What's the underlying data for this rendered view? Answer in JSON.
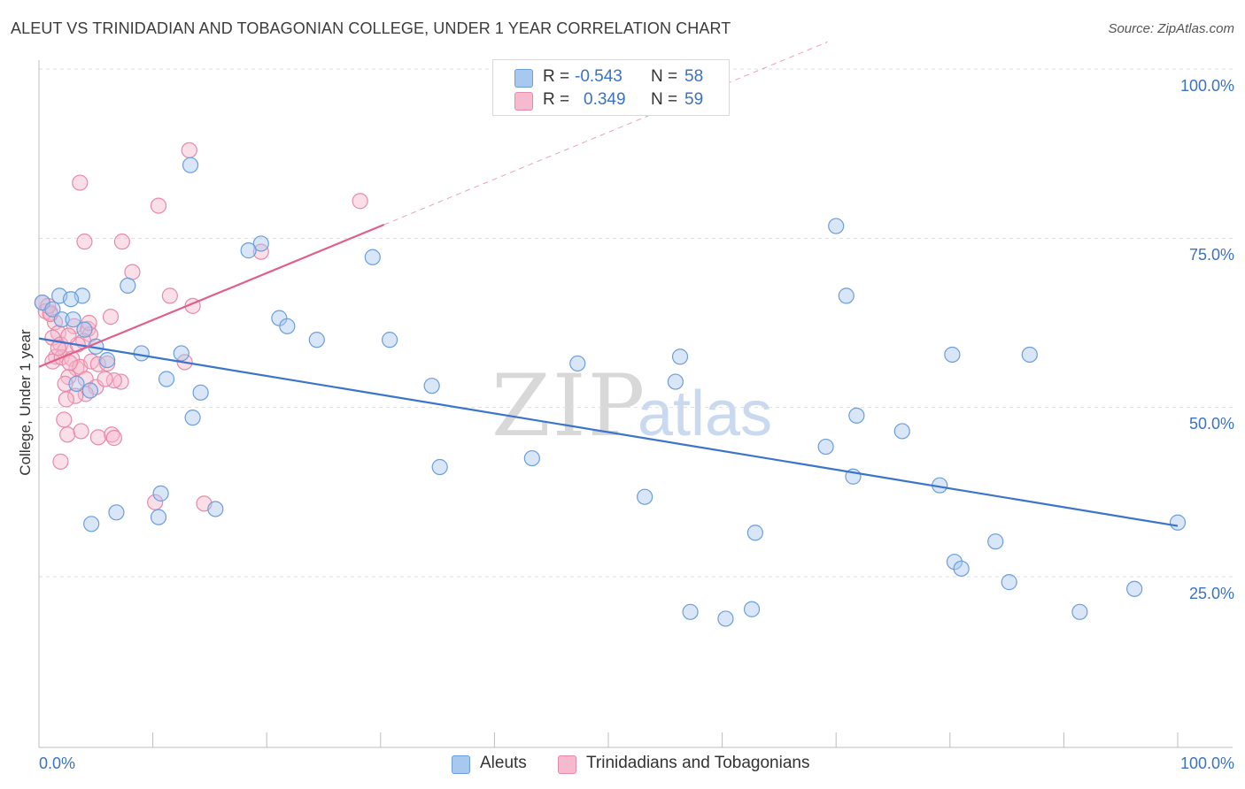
{
  "title": "ALEUT VS TRINIDADIAN AND TOBAGONIAN COLLEGE, UNDER 1 YEAR CORRELATION CHART",
  "source": "Source: ZipAtlas.com",
  "watermark": {
    "part1": "ZIP",
    "part2": "atlas"
  },
  "legend": {
    "r_label": "R =",
    "n_label": "N =",
    "series": [
      {
        "name": "Aleuts",
        "r": "-0.543",
        "n": "58",
        "color": "#a9c8ef",
        "stroke": "#6a9fdc"
      },
      {
        "name": "Trinidadians and Tobagonians",
        "r": "0.349",
        "n": "59",
        "color": "#f7b9cd",
        "stroke": "#e88aa8"
      }
    ]
  },
  "axes": {
    "ylabel": "College, Under 1 year",
    "x_min_label": "0.0%",
    "x_max_label": "100.0%",
    "y_ticks": [
      "100.0%",
      "75.0%",
      "50.0%",
      "25.0%"
    ]
  },
  "chart_data": {
    "type": "scatter",
    "title": "ALEUT VS TRINIDADIAN AND TOBAGONIAN COLLEGE, UNDER 1 YEAR CORRELATION CHART",
    "xlabel": "",
    "ylabel": "College, Under 1 year",
    "xlim": [
      0,
      100
    ],
    "ylim": [
      2,
      104
    ],
    "y_ticks": [
      25,
      50,
      75,
      100
    ],
    "grid": true,
    "legend_position": "top-center",
    "series": [
      {
        "name": "Aleuts",
        "color": "#6a9fdc",
        "trend": {
          "x": [
            0,
            100
          ],
          "y": [
            60.2,
            32.5
          ],
          "color": "#3a74cc"
        },
        "points": [
          [
            0.3,
            65.5
          ],
          [
            1.2,
            64.5
          ],
          [
            2.0,
            63.0
          ],
          [
            3.0,
            63.0
          ],
          [
            4.0,
            61.5
          ],
          [
            5.0,
            59.0
          ],
          [
            6.0,
            57.0
          ],
          [
            1.8,
            66.5
          ],
          [
            3.8,
            66.5
          ],
          [
            2.8,
            66.0
          ],
          [
            7.8,
            68.0
          ],
          [
            4.5,
            52.5
          ],
          [
            3.3,
            53.5
          ],
          [
            12.5,
            58.0
          ],
          [
            9.0,
            58.0
          ],
          [
            11.2,
            54.2
          ],
          [
            14.2,
            52.2
          ],
          [
            13.5,
            48.5
          ],
          [
            10.7,
            37.3
          ],
          [
            10.5,
            33.8
          ],
          [
            6.8,
            34.5
          ],
          [
            4.6,
            32.8
          ],
          [
            15.5,
            35.0
          ],
          [
            13.3,
            85.8
          ],
          [
            19.5,
            74.2
          ],
          [
            18.4,
            73.2
          ],
          [
            21.1,
            63.2
          ],
          [
            21.8,
            62.0
          ],
          [
            24.4,
            60.0
          ],
          [
            29.3,
            72.2
          ],
          [
            30.8,
            60.0
          ],
          [
            34.5,
            53.2
          ],
          [
            35.2,
            41.2
          ],
          [
            43.3,
            42.5
          ],
          [
            47.3,
            56.5
          ],
          [
            53.2,
            36.8
          ],
          [
            55.9,
            53.8
          ],
          [
            56.3,
            57.5
          ],
          [
            57.2,
            19.8
          ],
          [
            60.3,
            18.8
          ],
          [
            62.6,
            20.2
          ],
          [
            62.9,
            31.5
          ],
          [
            69.1,
            44.2
          ],
          [
            70.0,
            76.8
          ],
          [
            70.9,
            66.5
          ],
          [
            71.5,
            39.8
          ],
          [
            71.8,
            48.8
          ],
          [
            75.8,
            46.5
          ],
          [
            79.1,
            38.5
          ],
          [
            80.2,
            57.8
          ],
          [
            80.4,
            27.2
          ],
          [
            81.0,
            26.2
          ],
          [
            84.0,
            30.2
          ],
          [
            85.2,
            24.2
          ],
          [
            87.0,
            57.8
          ],
          [
            91.4,
            19.8
          ],
          [
            96.2,
            23.2
          ],
          [
            100.0,
            33.0
          ]
        ]
      },
      {
        "name": "Trinidadians and Tobagonians",
        "color": "#e88aa8",
        "trend": {
          "x": [
            0,
            30.3
          ],
          "y": [
            56.0,
            77.0
          ],
          "dash_to_x": 100,
          "color": "#e0608a"
        },
        "points": [
          [
            0.3,
            65.5
          ],
          [
            0.6,
            64.2
          ],
          [
            1.0,
            64.0
          ],
          [
            1.4,
            62.6
          ],
          [
            1.7,
            61.0
          ],
          [
            1.2,
            60.3
          ],
          [
            1.9,
            59.3
          ],
          [
            2.3,
            58.5
          ],
          [
            1.5,
            57.5
          ],
          [
            1.2,
            56.8
          ],
          [
            2.0,
            57.4
          ],
          [
            2.9,
            57.2
          ],
          [
            3.3,
            55.8
          ],
          [
            3.6,
            56.0
          ],
          [
            2.6,
            54.5
          ],
          [
            2.3,
            53.5
          ],
          [
            4.1,
            54.2
          ],
          [
            4.6,
            56.8
          ],
          [
            5.2,
            56.4
          ],
          [
            5.0,
            53.0
          ],
          [
            4.1,
            52.0
          ],
          [
            3.2,
            51.7
          ],
          [
            2.4,
            51.2
          ],
          [
            2.2,
            48.2
          ],
          [
            2.5,
            46.0
          ],
          [
            3.7,
            46.5
          ],
          [
            5.2,
            45.6
          ],
          [
            6.4,
            46.0
          ],
          [
            6.6,
            45.5
          ],
          [
            1.9,
            42.0
          ],
          [
            3.1,
            62.0
          ],
          [
            4.3,
            61.6
          ],
          [
            4.5,
            60.8
          ],
          [
            3.9,
            59.8
          ],
          [
            3.4,
            59.3
          ],
          [
            2.6,
            60.6
          ],
          [
            1.0,
            63.8
          ],
          [
            4.4,
            62.5
          ],
          [
            6.3,
            63.4
          ],
          [
            7.2,
            53.8
          ],
          [
            6.6,
            54.0
          ],
          [
            5.8,
            54.2
          ],
          [
            4.0,
            74.5
          ],
          [
            3.6,
            83.2
          ],
          [
            7.3,
            74.5
          ],
          [
            8.2,
            70.0
          ],
          [
            10.5,
            79.8
          ],
          [
            13.2,
            88.0
          ],
          [
            11.5,
            66.5
          ],
          [
            13.5,
            65.0
          ],
          [
            12.8,
            56.7
          ],
          [
            14.5,
            35.8
          ],
          [
            19.5,
            73.0
          ],
          [
            28.2,
            80.5
          ],
          [
            1.7,
            58.8
          ],
          [
            2.7,
            56.6
          ],
          [
            6.0,
            56.5
          ],
          [
            10.2,
            36.0
          ],
          [
            0.8,
            65.0
          ]
        ]
      }
    ]
  }
}
